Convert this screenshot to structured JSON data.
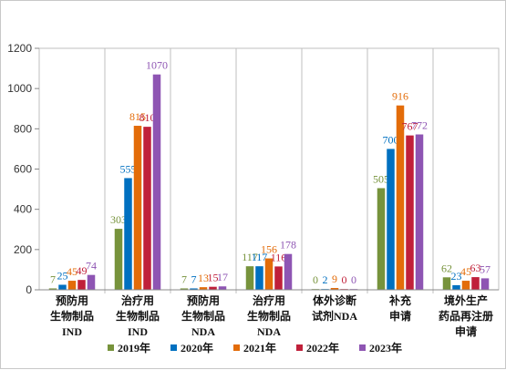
{
  "chart_data": {
    "type": "bar",
    "title": "",
    "xlabel": "",
    "ylabel": "",
    "ylim": [
      0,
      1200
    ],
    "yticks": [
      "0",
      "200",
      "400",
      "600",
      "800",
      "1000",
      "1200"
    ],
    "grid": false,
    "legend_position": "bottom",
    "categories": [
      [
        "预防用",
        "生物制品",
        "IND"
      ],
      [
        "治疗用",
        "生物制品",
        "IND"
      ],
      [
        "预防用",
        "生物制品",
        "NDA"
      ],
      [
        "治疗用",
        "生物制品",
        "NDA"
      ],
      [
        "体外诊断",
        "试剂NDA"
      ],
      [
        "补充",
        "申请"
      ],
      [
        "境外生产",
        "药品再注册",
        "申请"
      ]
    ],
    "series": [
      {
        "name": "2019年",
        "color": "#77933c",
        "values": [
          7,
          303,
          7,
          117,
          0,
          505,
          62
        ]
      },
      {
        "name": "2020年",
        "color": "#0070c0",
        "values": [
          25,
          555,
          7,
          117,
          2,
          700,
          23
        ]
      },
      {
        "name": "2021年",
        "color": "#e36c09",
        "values": [
          45,
          815,
          13,
          156,
          9,
          916,
          45
        ]
      },
      {
        "name": "2022年",
        "color": "#c0203a",
        "values": [
          49,
          810,
          15,
          116,
          0,
          767,
          63
        ]
      },
      {
        "name": "2023年",
        "color": "#8e55b3",
        "values": [
          74,
          1070,
          17,
          178,
          0,
          772,
          57
        ]
      }
    ]
  }
}
